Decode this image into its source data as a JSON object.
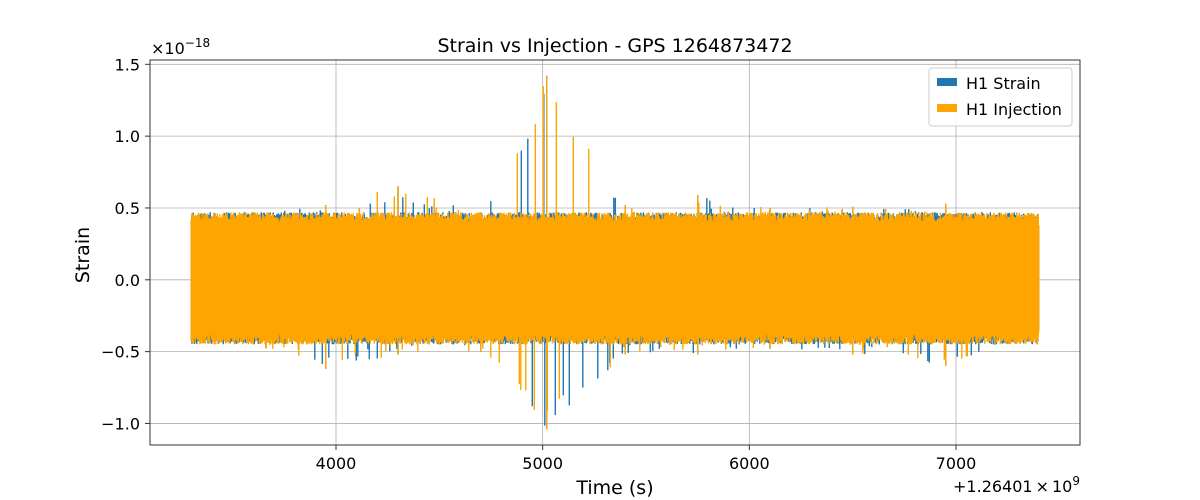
{
  "chart_data": {
    "type": "line",
    "title": "Strain vs Injection - GPS 1264873472",
    "xlabel": "Time (s)",
    "ylabel": "Strain",
    "x_offset_text": {
      "mantissa": "+1.26401",
      "times": "×",
      "base": "10",
      "exponent": "9"
    },
    "y_scale_text": {
      "times": "×",
      "base": "10",
      "exponent": "−18"
    },
    "xlim": [
      3100,
      7600
    ],
    "ylim": [
      -1.15,
      1.53
    ],
    "x_ticks": [
      {
        "value": 4000,
        "label": "4000"
      },
      {
        "value": 5000,
        "label": "5000"
      },
      {
        "value": 6000,
        "label": "6000"
      },
      {
        "value": 7000,
        "label": "7000"
      }
    ],
    "y_ticks": [
      {
        "value": -1.0,
        "label": "−1.0"
      },
      {
        "value": -0.5,
        "label": "−0.5"
      },
      {
        "value": 0.0,
        "label": "0.0"
      },
      {
        "value": 0.5,
        "label": "0.5"
      },
      {
        "value": 1.0,
        "label": "1.0"
      },
      {
        "value": 1.5,
        "label": "1.5"
      }
    ],
    "grid": true,
    "legend_position": "top-right",
    "series": [
      {
        "name": "H1 Strain",
        "color": "#1f77b4",
        "x_range": [
          3300,
          7400
        ],
        "envelope": [
          {
            "x": 3300,
            "max": 0.42,
            "min": -0.42
          },
          {
            "x": 3600,
            "max": 0.47,
            "min": -0.45
          },
          {
            "x": 3950,
            "max": 0.52,
            "min": -0.62
          },
          {
            "x": 4300,
            "max": 0.65,
            "min": -0.52
          },
          {
            "x": 4700,
            "max": 0.47,
            "min": -0.5
          },
          {
            "x": 5020,
            "max": 1.42,
            "min": -1.04
          },
          {
            "x": 5400,
            "max": 0.52,
            "min": -0.52
          },
          {
            "x": 5750,
            "max": 0.59,
            "min": -0.52
          },
          {
            "x": 6100,
            "max": 0.5,
            "min": -0.48
          },
          {
            "x": 6500,
            "max": 0.51,
            "min": -0.52
          },
          {
            "x": 6950,
            "max": 0.53,
            "min": -0.6
          },
          {
            "x": 7400,
            "max": 0.38,
            "min": -0.36
          }
        ]
      },
      {
        "name": "H1 Injection",
        "color": "#ffa500",
        "x_range": [
          3300,
          7400
        ],
        "envelope": [
          {
            "x": 3300,
            "max": 0.42,
            "min": -0.42
          },
          {
            "x": 3600,
            "max": 0.47,
            "min": -0.45
          },
          {
            "x": 3950,
            "max": 0.52,
            "min": -0.62
          },
          {
            "x": 4300,
            "max": 0.65,
            "min": -0.52
          },
          {
            "x": 4700,
            "max": 0.47,
            "min": -0.5
          },
          {
            "x": 5020,
            "max": 1.42,
            "min": -1.04
          },
          {
            "x": 5400,
            "max": 0.52,
            "min": -0.52
          },
          {
            "x": 5750,
            "max": 0.59,
            "min": -0.52
          },
          {
            "x": 6100,
            "max": 0.5,
            "min": -0.48
          },
          {
            "x": 6500,
            "max": 0.51,
            "min": -0.52
          },
          {
            "x": 6950,
            "max": 0.53,
            "min": -0.6
          },
          {
            "x": 7400,
            "max": 0.38,
            "min": -0.36
          }
        ]
      }
    ]
  }
}
